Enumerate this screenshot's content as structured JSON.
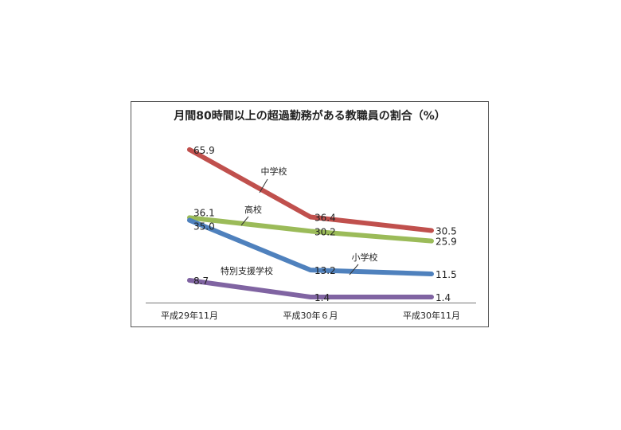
{
  "chart_data": {
    "type": "line",
    "title": "月間80時間以上の超過勤務がある教職員の割合（%）",
    "categories": [
      "平成29年11月",
      "平成30年６月",
      "平成30年11月"
    ],
    "xlabel": "",
    "ylabel": "",
    "ylim": [
      0,
      70
    ],
    "grid": false,
    "legend": "inline labels",
    "series": [
      {
        "name": "中学校",
        "color": "#c0504d",
        "values": [
          65.9,
          36.4,
          30.5
        ],
        "value_labels": [
          "65.9",
          "36.4",
          "30.5"
        ]
      },
      {
        "name": "高校",
        "color": "#9bbb59",
        "values": [
          36.1,
          30.2,
          25.9
        ],
        "value_labels": [
          "36.1",
          "30.2",
          "25.9"
        ]
      },
      {
        "name": "小学校",
        "color": "#4f81bd",
        "values": [
          35.0,
          13.2,
          11.5
        ],
        "value_labels": [
          "35.0",
          "13.2",
          "11.5"
        ]
      },
      {
        "name": "特別支援学校",
        "color": "#8064a2",
        "values": [
          8.7,
          1.4,
          1.4
        ],
        "value_labels": [
          "8.7",
          "1.4",
          "1.4"
        ]
      }
    ]
  }
}
